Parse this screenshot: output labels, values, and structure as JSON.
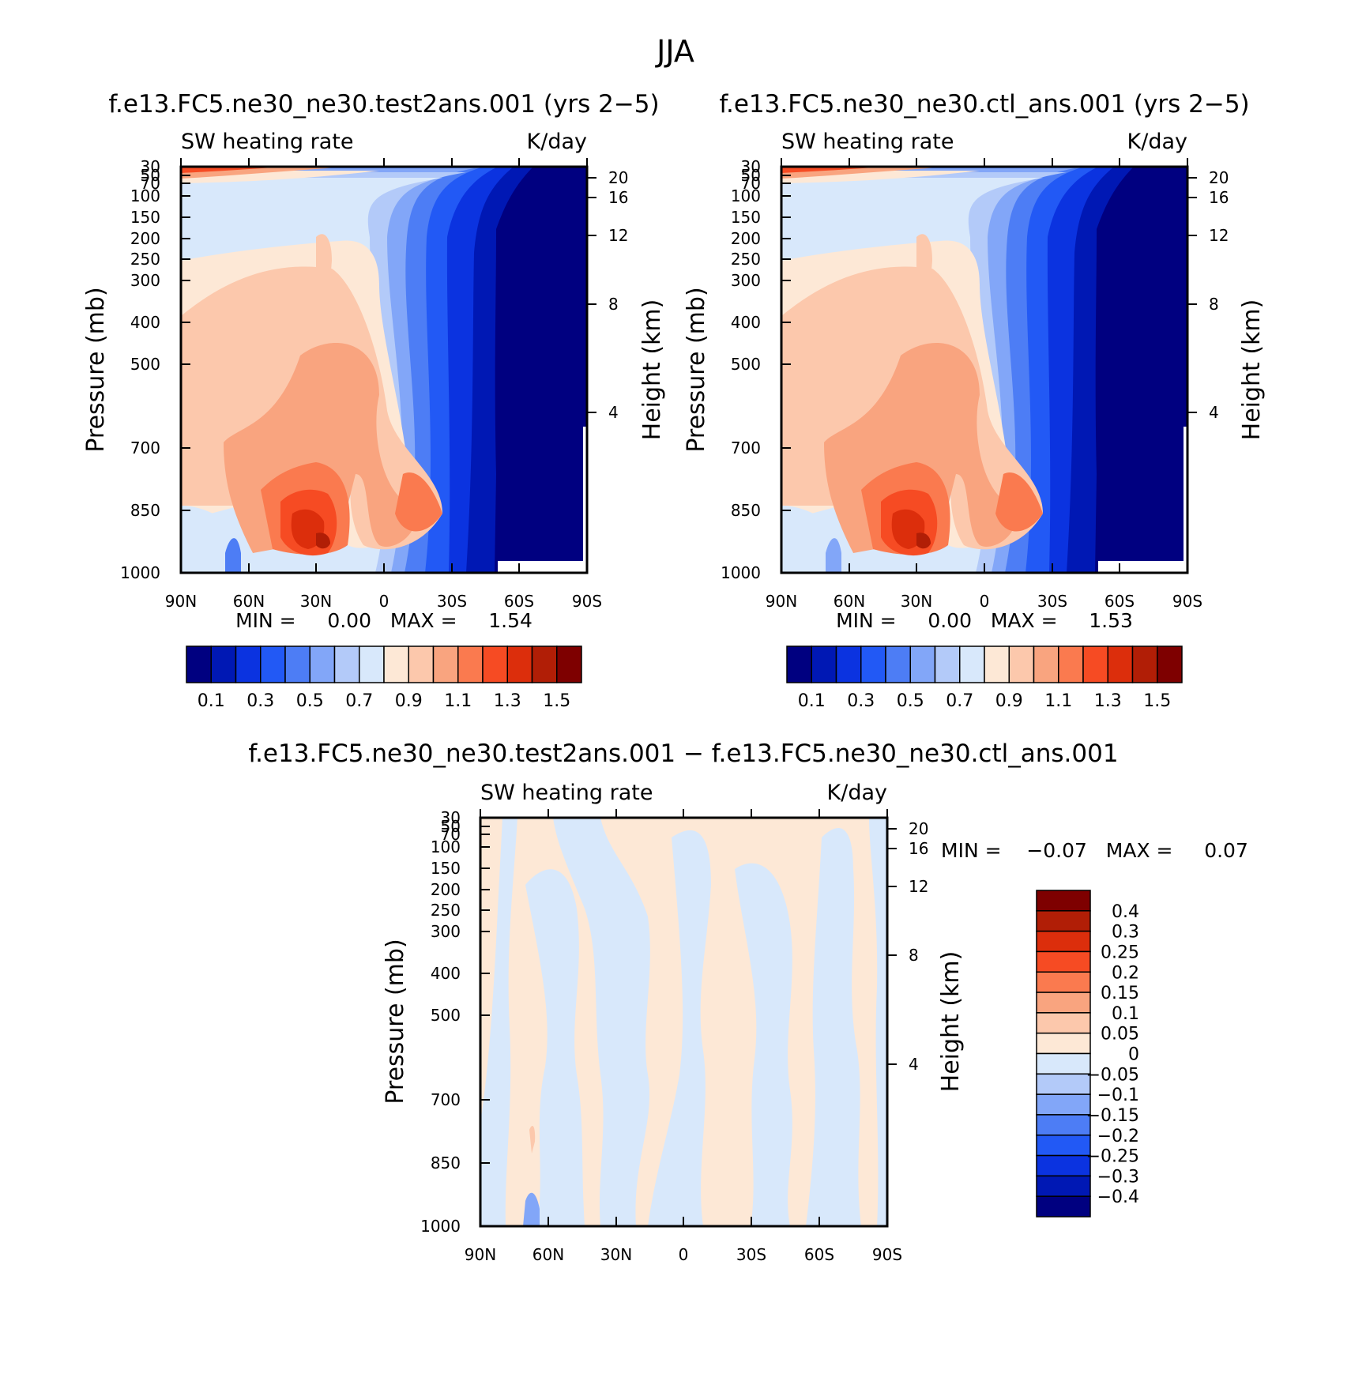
{
  "figure": {
    "title": "JJA"
  },
  "panels": [
    {
      "title": "f.e13.FC5.ne30_ne30.test2ans.001 (yrs 2−5)",
      "left_label": "SW heating rate",
      "right_label": "K/day",
      "min_max": "MIN =     0.00   MAX =     1.54"
    },
    {
      "title": "f.e13.FC5.ne30_ne30.ctl_ans.001 (yrs 2−5)",
      "left_label": "SW heating rate",
      "right_label": "K/day",
      "min_max": "MIN =     0.00   MAX =     1.53"
    },
    {
      "title": "f.e13.FC5.ne30_ne30.test2ans.001 − f.e13.FC5.ne30_ne30.ctl_ans.001",
      "left_label": "SW heating rate",
      "right_label": "K/day",
      "min_max": "MIN =    −0.07   MAX =     0.07"
    }
  ],
  "chart_data": [
    {
      "type": "heatmap",
      "title": "f.e13.FC5.ne30_ne30.test2ans.001 (yrs 2−5)",
      "variable": "SW heating rate",
      "units": "K/day",
      "ylabel": "Pressure (mb)",
      "ylabel_right": "Height (km)",
      "x_ticks": [
        "90N",
        "60N",
        "30N",
        "0",
        "30S",
        "60S",
        "90S"
      ],
      "y_ticks": [
        "30",
        "50",
        "70",
        "100",
        "150",
        "200",
        "250",
        "300",
        "400",
        "500",
        "700",
        "850",
        "1000"
      ],
      "height_ticks": [
        "20",
        "16",
        "12",
        "8",
        "4"
      ],
      "levels": [
        0.1,
        0.2,
        0.3,
        0.4,
        0.5,
        0.6,
        0.7,
        0.8,
        0.9,
        1.0,
        1.1,
        1.2,
        1.3,
        1.4,
        1.5
      ],
      "colorbar_labels": [
        "0.1",
        "0.3",
        "0.5",
        "0.7",
        "0.9",
        "1.1",
        "1.3",
        "1.5"
      ],
      "min": 0.0,
      "max": 1.54
    },
    {
      "type": "heatmap",
      "title": "f.e13.FC5.ne30_ne30.ctl_ans.001 (yrs 2−5)",
      "variable": "SW heating rate",
      "units": "K/day",
      "ylabel": "Pressure (mb)",
      "ylabel_right": "Height (km)",
      "x_ticks": [
        "90N",
        "60N",
        "30N",
        "0",
        "30S",
        "60S",
        "90S"
      ],
      "y_ticks": [
        "30",
        "50",
        "70",
        "100",
        "150",
        "200",
        "250",
        "300",
        "400",
        "500",
        "700",
        "850",
        "1000"
      ],
      "height_ticks": [
        "20",
        "16",
        "12",
        "8",
        "4"
      ],
      "levels": [
        0.1,
        0.2,
        0.3,
        0.4,
        0.5,
        0.6,
        0.7,
        0.8,
        0.9,
        1.0,
        1.1,
        1.2,
        1.3,
        1.4,
        1.5
      ],
      "colorbar_labels": [
        "0.1",
        "0.3",
        "0.5",
        "0.7",
        "0.9",
        "1.1",
        "1.3",
        "1.5"
      ],
      "min": 0.0,
      "max": 1.53
    },
    {
      "type": "heatmap",
      "title": "f.e13.FC5.ne30_ne30.test2ans.001 − f.e13.FC5.ne30_ne30.ctl_ans.001",
      "variable": "SW heating rate",
      "units": "K/day",
      "ylabel": "Pressure (mb)",
      "ylabel_right": "Height (km)",
      "x_ticks": [
        "90N",
        "60N",
        "30N",
        "0",
        "30S",
        "60S",
        "90S"
      ],
      "y_ticks": [
        "30",
        "50",
        "70",
        "100",
        "150",
        "200",
        "250",
        "300",
        "400",
        "500",
        "700",
        "850",
        "1000"
      ],
      "height_ticks": [
        "20",
        "16",
        "12",
        "8",
        "4"
      ],
      "levels": [
        -0.4,
        -0.3,
        -0.25,
        -0.2,
        -0.15,
        -0.1,
        -0.05,
        0,
        0.05,
        0.1,
        0.15,
        0.2,
        0.25,
        0.3,
        0.4
      ],
      "colorbar_labels": [
        "0.4",
        "0.3",
        "0.25",
        "0.2",
        "0.15",
        "0.1",
        "0.05",
        "0",
        "−0.05",
        "−0.1",
        "−0.15",
        "−0.2",
        "−0.25",
        "−0.3",
        "−0.4"
      ],
      "min": -0.07,
      "max": 0.07
    }
  ],
  "colors": {
    "scale": [
      "#000080",
      "#0018b4",
      "#0b33e0",
      "#2259f5",
      "#4d7df5",
      "#82a6f8",
      "#b3caf9",
      "#d8e8fb",
      "#fde8d6",
      "#fcc8ac",
      "#f9a47f",
      "#fa7a4f",
      "#f64b23",
      "#dc2e0c",
      "#b11e06",
      "#7e0000"
    ]
  }
}
